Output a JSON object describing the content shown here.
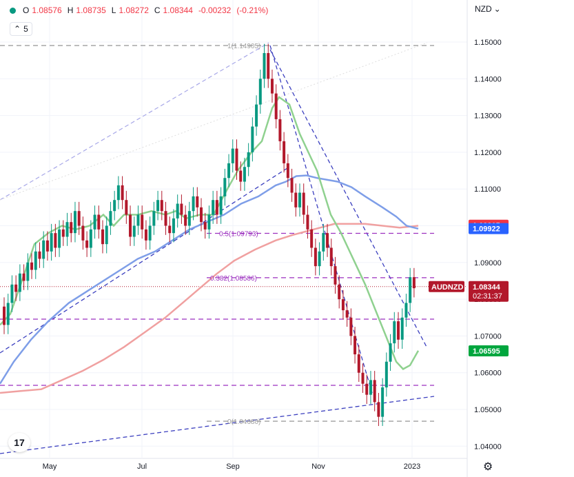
{
  "toolbar": {
    "o_label": "O",
    "o_value": "1.08576",
    "h_label": "H",
    "h_value": "1.08735",
    "l_label": "L",
    "l_value": "1.08272",
    "c_label": "C",
    "c_value": "1.08344",
    "change": "-0.00232",
    "change_pct": "(-0.21%)",
    "interval_value": "5",
    "currency": "NZD"
  },
  "colors": {
    "up": "#089981",
    "down": "#b2182b",
    "sma_fast": "#8fd18f",
    "sma_mid": "#7e9ee8",
    "sma_slow": "#f0a0a0",
    "trend": "#3b3fbf",
    "fib": "#9b2fbf",
    "gray": "#9e9e9e"
  },
  "chart_data": {
    "type": "candlestick",
    "symbol": "AUDNZD",
    "y_ticks": [
      "1.15000",
      "1.14000",
      "1.13000",
      "1.12000",
      "1.11000",
      "1.10000",
      "1.09000",
      "1.08000",
      "1.07000",
      "1.06000",
      "1.05000",
      "1.04000"
    ],
    "ylim": [
      1.0375,
      1.1535
    ],
    "x_ticks": [
      "May",
      "Jul",
      "Sep",
      "Nov",
      "2023"
    ],
    "fib_levels": [
      {
        "label": "1(1.14905)",
        "value": 1.14905
      },
      {
        "label": "0.5(1.09793)",
        "value": 1.09793
      },
      {
        "label": "0.382(1.08586)",
        "value": 1.08586
      },
      {
        "label": "0(1.04680)",
        "value": 1.0468
      }
    ],
    "price_labels": [
      {
        "text": "1.10015",
        "value": 1.10015,
        "color": "#f23645"
      },
      {
        "text": "1.09922",
        "value": 1.09922,
        "color": "#2962ff"
      },
      {
        "text": "1.08344",
        "value": 1.08344,
        "color": "#b2182b",
        "sub": "02:31:37",
        "tag": "AUDNZD"
      },
      {
        "text": "1.06595",
        "value": 1.06595,
        "color": "#00a63e"
      }
    ],
    "moving_averages": {
      "fast": [
        [
          0,
          1.073
        ],
        [
          15,
          1.076
        ],
        [
          30,
          1.084
        ],
        [
          50,
          1.095
        ],
        [
          70,
          1.098
        ],
        [
          90,
          1.1
        ],
        [
          110,
          1.099
        ],
        [
          130,
          1.1
        ],
        [
          150,
          1.103
        ],
        [
          165,
          1.1
        ],
        [
          180,
          1.103
        ],
        [
          200,
          1.103
        ],
        [
          220,
          1.104
        ],
        [
          240,
          1.103
        ],
        [
          255,
          1.104
        ],
        [
          270,
          1.102
        ],
        [
          290,
          1.103
        ],
        [
          310,
          1.103
        ],
        [
          330,
          1.11
        ],
        [
          345,
          1.115
        ],
        [
          365,
          1.12
        ],
        [
          380,
          1.123
        ],
        [
          395,
          1.132
        ],
        [
          405,
          1.135
        ],
        [
          420,
          1.133
        ],
        [
          435,
          1.125
        ],
        [
          445,
          1.121
        ],
        [
          460,
          1.115
        ],
        [
          470,
          1.109
        ],
        [
          480,
          1.103
        ],
        [
          495,
          1.098
        ],
        [
          505,
          1.094
        ],
        [
          515,
          1.09
        ],
        [
          530,
          1.084
        ],
        [
          545,
          1.077
        ],
        [
          560,
          1.07
        ],
        [
          575,
          1.063
        ],
        [
          585,
          1.061
        ],
        [
          595,
          1.062
        ],
        [
          607,
          1.066
        ]
      ],
      "mid": [
        [
          0,
          1.057
        ],
        [
          20,
          1.063
        ],
        [
          45,
          1.069
        ],
        [
          70,
          1.074
        ],
        [
          100,
          1.079
        ],
        [
          125,
          1.082
        ],
        [
          150,
          1.085
        ],
        [
          175,
          1.088
        ],
        [
          200,
          1.091
        ],
        [
          225,
          1.093
        ],
        [
          250,
          1.096
        ],
        [
          275,
          1.099
        ],
        [
          300,
          1.101
        ],
        [
          325,
          1.103
        ],
        [
          350,
          1.106
        ],
        [
          375,
          1.108
        ],
        [
          400,
          1.111
        ],
        [
          415,
          1.112
        ],
        [
          430,
          1.1135
        ],
        [
          445,
          1.1137
        ],
        [
          460,
          1.113
        ],
        [
          475,
          1.1125
        ],
        [
          490,
          1.112
        ],
        [
          510,
          1.1105
        ],
        [
          530,
          1.108
        ],
        [
          555,
          1.105
        ],
        [
          575,
          1.1025
        ],
        [
          590,
          1.1
        ],
        [
          607,
          1.0992
        ]
      ],
      "slow": [
        [
          0,
          1.0545
        ],
        [
          30,
          1.055
        ],
        [
          60,
          1.0555
        ],
        [
          90,
          1.058
        ],
        [
          120,
          1.0605
        ],
        [
          150,
          1.0635
        ],
        [
          180,
          1.067
        ],
        [
          210,
          1.071
        ],
        [
          240,
          1.075
        ],
        [
          265,
          1.079
        ],
        [
          290,
          1.083
        ],
        [
          315,
          1.087
        ],
        [
          340,
          1.0905
        ],
        [
          370,
          1.0935
        ],
        [
          400,
          1.096
        ],
        [
          425,
          1.0975
        ],
        [
          445,
          1.0985
        ],
        [
          465,
          1.0995
        ],
        [
          485,
          1.1005
        ],
        [
          505,
          1.1005
        ],
        [
          530,
          1.1005
        ],
        [
          555,
          1.1
        ],
        [
          580,
          1.0995
        ],
        [
          607,
          1.1
        ]
      ]
    },
    "candles": [
      [
        1.078,
        1.073
      ],
      [
        1.073,
        1.079
      ],
      [
        1.079,
        1.084
      ],
      [
        1.084,
        1.082
      ],
      [
        1.082,
        1.087
      ],
      [
        1.087,
        1.085
      ],
      [
        1.085,
        1.09
      ],
      [
        1.09,
        1.088
      ],
      [
        1.088,
        1.093
      ],
      [
        1.093,
        1.091
      ],
      [
        1.091,
        1.096
      ],
      [
        1.096,
        1.093
      ],
      [
        1.093,
        1.098
      ],
      [
        1.098,
        1.094
      ],
      [
        1.094,
        1.099
      ],
      [
        1.099,
        1.097
      ],
      [
        1.097,
        1.101
      ],
      [
        1.101,
        1.098
      ],
      [
        1.098,
        1.104
      ],
      [
        1.104,
        1.1
      ],
      [
        1.1,
        1.096
      ],
      [
        1.096,
        1.094
      ],
      [
        1.094,
        1.099
      ],
      [
        1.099,
        1.103
      ],
      [
        1.103,
        1.099
      ],
      [
        1.099,
        1.095
      ],
      [
        1.095,
        1.1
      ],
      [
        1.1,
        1.104
      ],
      [
        1.104,
        1.107
      ],
      [
        1.107,
        1.111
      ],
      [
        1.111,
        1.107
      ],
      [
        1.107,
        1.103
      ],
      [
        1.103,
        1.097
      ],
      [
        1.097,
        1.1
      ],
      [
        1.1,
        1.103
      ],
      [
        1.103,
        1.099
      ],
      [
        1.099,
        1.096
      ],
      [
        1.096,
        1.1
      ],
      [
        1.1,
        1.104
      ],
      [
        1.104,
        1.107
      ],
      [
        1.107,
        1.104
      ],
      [
        1.104,
        1.1
      ],
      [
        1.1,
        1.098
      ],
      [
        1.098,
        1.102
      ],
      [
        1.102,
        1.106
      ],
      [
        1.106,
        1.103
      ],
      [
        1.103,
        1.1
      ],
      [
        1.1,
        1.104
      ],
      [
        1.104,
        1.108
      ],
      [
        1.108,
        1.105
      ],
      [
        1.105,
        1.101
      ],
      [
        1.101,
        1.099
      ],
      [
        1.099,
        1.103
      ],
      [
        1.103,
        1.107
      ],
      [
        1.107,
        1.103
      ],
      [
        1.103,
        1.108
      ],
      [
        1.108,
        1.113
      ],
      [
        1.113,
        1.117
      ],
      [
        1.117,
        1.121
      ],
      [
        1.121,
        1.115
      ],
      [
        1.115,
        1.112
      ],
      [
        1.112,
        1.116
      ],
      [
        1.116,
        1.12
      ],
      [
        1.12,
        1.127
      ],
      [
        1.127,
        1.133
      ],
      [
        1.133,
        1.14
      ],
      [
        1.14,
        1.147
      ],
      [
        1.147,
        1.14
      ],
      [
        1.14,
        1.136
      ],
      [
        1.136,
        1.129
      ],
      [
        1.129,
        1.123
      ],
      [
        1.123,
        1.117
      ],
      [
        1.117,
        1.113
      ],
      [
        1.113,
        1.109
      ],
      [
        1.109,
        1.105
      ],
      [
        1.105,
        1.109
      ],
      [
        1.109,
        1.103
      ],
      [
        1.103,
        1.099
      ],
      [
        1.099,
        1.094
      ],
      [
        1.094,
        1.089
      ],
      [
        1.089,
        1.093
      ],
      [
        1.093,
        1.098
      ],
      [
        1.098,
        1.094
      ],
      [
        1.094,
        1.089
      ],
      [
        1.089,
        1.084
      ],
      [
        1.084,
        1.08
      ],
      [
        1.08,
        1.077
      ],
      [
        1.077,
        1.075
      ],
      [
        1.075,
        1.07
      ],
      [
        1.07,
        1.065
      ],
      [
        1.065,
        1.06
      ],
      [
        1.06,
        1.057
      ],
      [
        1.057,
        1.054
      ],
      [
        1.054,
        1.058
      ],
      [
        1.058,
        1.052
      ],
      [
        1.052,
        1.048
      ],
      [
        1.048,
        1.056
      ],
      [
        1.056,
        1.063
      ],
      [
        1.063,
        1.068
      ],
      [
        1.068,
        1.074
      ],
      [
        1.074,
        1.069
      ],
      [
        1.069,
        1.075
      ],
      [
        1.075,
        1.079
      ],
      [
        1.079,
        1.086
      ],
      [
        1.086,
        1.083
      ]
    ]
  }
}
